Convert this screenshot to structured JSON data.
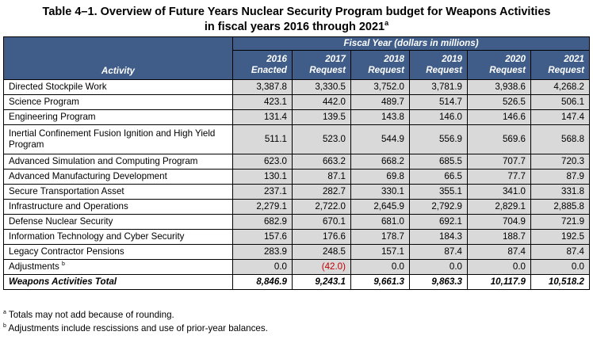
{
  "title": {
    "line1": "Table 4–1.  Overview of Future Years Nuclear Security Program budget for Weapons Activities",
    "line2": "in fiscal years 2016 through 2021",
    "line2_sup": "a"
  },
  "header": {
    "activity": "Activity",
    "fiscal_year": "Fiscal Year (dollars in millions)",
    "columns": [
      {
        "year": "2016",
        "kind": "Enacted"
      },
      {
        "year": "2017",
        "kind": "Request"
      },
      {
        "year": "2018",
        "kind": "Request"
      },
      {
        "year": "2019",
        "kind": "Request"
      },
      {
        "year": "2020",
        "kind": "Request"
      },
      {
        "year": "2021",
        "kind": "Request"
      }
    ]
  },
  "rows": [
    {
      "activity": "Directed Stockpile Work",
      "values": [
        "3,387.8",
        "3,330.5",
        "3,752.0",
        "3,781.9",
        "3,938.6",
        "4,268.2"
      ]
    },
    {
      "activity": "Science Program",
      "values": [
        "423.1",
        "442.0",
        "489.7",
        "514.7",
        "526.5",
        "506.1"
      ]
    },
    {
      "activity": "Engineering Program",
      "values": [
        "131.4",
        "139.5",
        "143.8",
        "146.0",
        "146.6",
        "147.4"
      ]
    },
    {
      "activity": "Inertial Confinement Fusion Ignition and High Yield Program",
      "values": [
        "511.1",
        "523.0",
        "544.9",
        "556.9",
        "569.6",
        "568.8"
      ]
    },
    {
      "activity": "Advanced Simulation and Computing Program",
      "values": [
        "623.0",
        "663.2",
        "668.2",
        "685.5",
        "707.7",
        "720.3"
      ]
    },
    {
      "activity": "Advanced Manufacturing Development",
      "values": [
        "130.1",
        "87.1",
        "69.8",
        "66.5",
        "77.7",
        "87.9"
      ]
    },
    {
      "activity": "Secure Transportation Asset",
      "values": [
        "237.1",
        "282.7",
        "330.1",
        "355.1",
        "341.0",
        "331.8"
      ]
    },
    {
      "activity": "Infrastructure and Operations",
      "values": [
        "2,279.1",
        "2,722.0",
        "2,645.9",
        "2,792.9",
        "2,829.1",
        "2,885.8"
      ]
    },
    {
      "activity": "Defense Nuclear Security",
      "values": [
        "682.9",
        "670.1",
        "681.0",
        "692.1",
        "704.9",
        "721.9"
      ]
    },
    {
      "activity": "Information Technology and Cyber Security",
      "values": [
        "157.6",
        "176.6",
        "178.7",
        "184.3",
        "188.7",
        "192.5"
      ]
    },
    {
      "activity": "Legacy Contractor Pensions",
      "values": [
        "283.9",
        "248.5",
        "157.1",
        "87.4",
        "87.4",
        "87.4"
      ]
    },
    {
      "activity": "Adjustments",
      "sup": "b",
      "values": [
        "0.0",
        "(42.0)",
        "0.0",
        "0.0",
        "0.0",
        "0.0"
      ]
    }
  ],
  "total": {
    "activity": "Weapons Activities Total",
    "values": [
      "8,846.9",
      "9,243.1",
      "9,661.3",
      "9,863.3",
      "10,117.9",
      "10,518.2"
    ]
  },
  "footnotes": [
    {
      "mark": "a",
      "text": " Totals may not add because of rounding."
    },
    {
      "mark": "b",
      "text": " Adjustments include rescissions and use of prior-year balances."
    }
  ],
  "colors": {
    "header_bg": "#3f5d88",
    "cell_bg": "#d9d9d9",
    "negative": "#c00000"
  }
}
